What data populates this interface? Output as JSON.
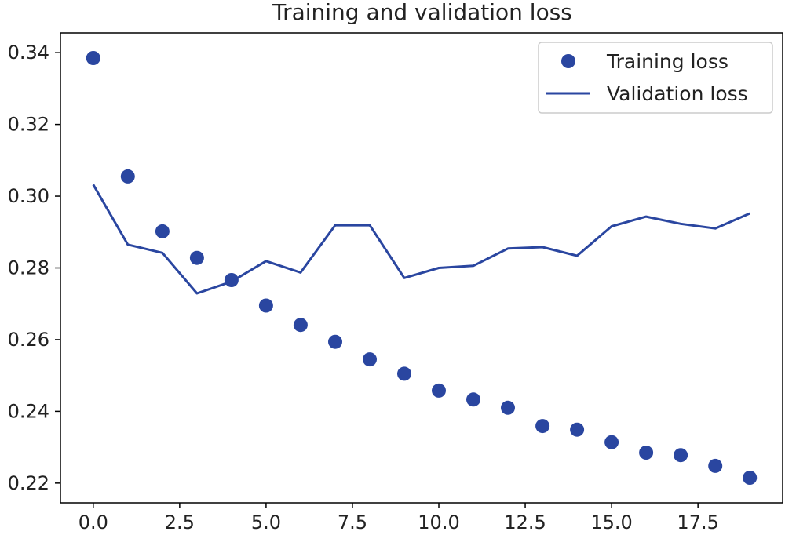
{
  "chart_data": {
    "type": "line",
    "title": "Training and validation loss",
    "xlabel": "",
    "ylabel": "",
    "xlim": [
      -0.95,
      19.95
    ],
    "ylim": [
      0.2145,
      0.3455
    ],
    "x_ticks": [
      0,
      2.5,
      5,
      7.5,
      10,
      12.5,
      15,
      17.5
    ],
    "x_tick_labels": [
      "0.0",
      "2.5",
      "5.0",
      "7.5",
      "10.0",
      "12.5",
      "15.0",
      "17.5"
    ],
    "y_ticks": [
      0.22,
      0.24,
      0.26,
      0.28,
      0.3,
      0.32,
      0.34
    ],
    "y_tick_labels": [
      "0.22",
      "0.24",
      "0.26",
      "0.28",
      "0.30",
      "0.32",
      "0.34"
    ],
    "grid": false,
    "legend_position": "top-right",
    "series": [
      {
        "name": "Training loss",
        "style": "markers",
        "color": "#2a46a0",
        "x": [
          0,
          1,
          2,
          3,
          4,
          5,
          6,
          7,
          8,
          9,
          10,
          11,
          12,
          13,
          14,
          15,
          16,
          17,
          18,
          19
        ],
        "values": [
          0.3385,
          0.3055,
          0.2902,
          0.2828,
          0.2766,
          0.2695,
          0.2641,
          0.2594,
          0.2545,
          0.2505,
          0.2458,
          0.2433,
          0.241,
          0.2359,
          0.2349,
          0.2314,
          0.2285,
          0.2278,
          0.2248,
          0.2215
        ]
      },
      {
        "name": "Validation loss",
        "style": "line",
        "color": "#2a46a0",
        "x": [
          0,
          1,
          2,
          3,
          4,
          5,
          6,
          7,
          8,
          9,
          10,
          11,
          12,
          13,
          14,
          15,
          16,
          17,
          18,
          19
        ],
        "values": [
          0.3032,
          0.2865,
          0.2842,
          0.2729,
          0.2762,
          0.2819,
          0.2787,
          0.2919,
          0.2919,
          0.2772,
          0.28,
          0.2806,
          0.2854,
          0.2858,
          0.2834,
          0.2916,
          0.2943,
          0.2923,
          0.291,
          0.2952
        ]
      }
    ]
  }
}
